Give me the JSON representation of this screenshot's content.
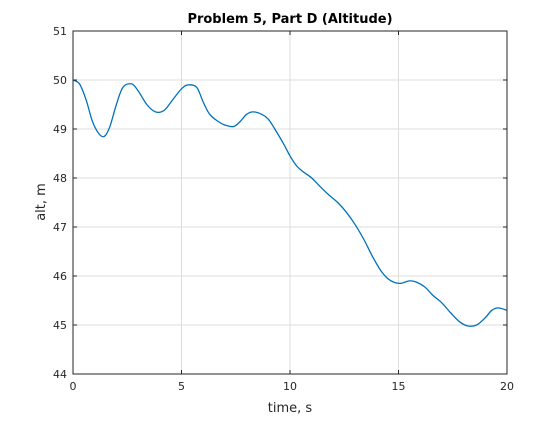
{
  "chart_data": {
    "type": "line",
    "title": "Problem 5, Part D (Altitude)",
    "xlabel": "time, s",
    "ylabel": "alt, m",
    "xlim": [
      0,
      20
    ],
    "ylim": [
      44,
      51
    ],
    "grid": true,
    "x_ticks": [
      "0",
      "5",
      "10",
      "15",
      "20"
    ],
    "y_ticks": [
      "44",
      "45",
      "46",
      "47",
      "48",
      "49",
      "50",
      "51"
    ],
    "line_color": "#0072BD",
    "series": [
      {
        "x": [
          0,
          0.3,
          0.6,
          0.9,
          1.2,
          1.45,
          1.7,
          2.0,
          2.3,
          2.7,
          3.0,
          3.4,
          3.8,
          4.2,
          4.6,
          5.0,
          5.3,
          5.7,
          6.0,
          6.3,
          6.7,
          7.0,
          7.4,
          7.7,
          8.0,
          8.3,
          8.7,
          9.0,
          9.3,
          9.7,
          10.0,
          10.3,
          10.6,
          11.0,
          11.4,
          11.8,
          12.2,
          12.6,
          13.0,
          13.4,
          13.8,
          14.2,
          14.5,
          14.8,
          15.1,
          15.5,
          15.8,
          16.2,
          16.6,
          17.0,
          17.4,
          17.8,
          18.2,
          18.6,
          19.0,
          19.3,
          19.6,
          20.0
        ],
        "y": [
          50.0,
          49.92,
          49.6,
          49.15,
          48.9,
          48.85,
          49.05,
          49.5,
          49.85,
          49.92,
          49.78,
          49.5,
          49.35,
          49.38,
          49.6,
          49.82,
          49.9,
          49.85,
          49.55,
          49.3,
          49.15,
          49.08,
          49.05,
          49.15,
          49.3,
          49.35,
          49.3,
          49.2,
          49.0,
          48.7,
          48.45,
          48.25,
          48.13,
          48.0,
          47.82,
          47.65,
          47.5,
          47.3,
          47.05,
          46.75,
          46.4,
          46.1,
          45.95,
          45.87,
          45.85,
          45.9,
          45.88,
          45.78,
          45.6,
          45.45,
          45.25,
          45.07,
          44.98,
          45.0,
          45.15,
          45.3,
          45.35,
          45.3
        ]
      }
    ]
  }
}
